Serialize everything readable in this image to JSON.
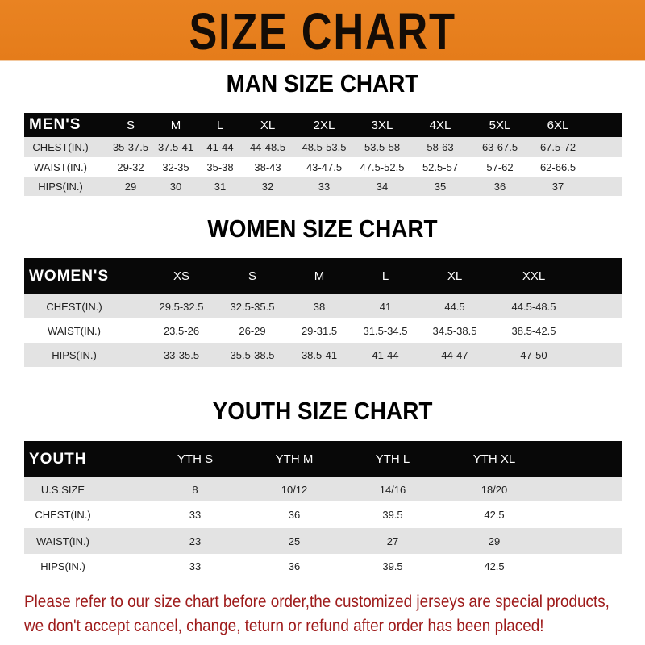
{
  "banner": {
    "title": "SIZE CHART",
    "color": "#e8801e"
  },
  "men": {
    "title": "MAN SIZE CHART",
    "header": [
      "MEN'S",
      "S",
      "M",
      "L",
      "XL",
      "2XL",
      "3XL",
      "4XL",
      "5XL",
      "6XL"
    ],
    "rows": [
      [
        "CHEST(IN.)",
        "35-37.5",
        "37.5-41",
        "41-44",
        "44-48.5",
        "48.5-53.5",
        "53.5-58",
        "58-63",
        "63-67.5",
        "67.5-72"
      ],
      [
        "WAIST(IN.)",
        "29-32",
        "32-35",
        "35-38",
        "38-43",
        "43-47.5",
        "47.5-52.5",
        "52.5-57",
        "57-62",
        "62-66.5"
      ],
      [
        "HIPS(IN.)",
        "29",
        "30",
        "31",
        "32",
        "33",
        "34",
        "35",
        "36",
        "37"
      ]
    ]
  },
  "women": {
    "title": "WOMEN SIZE CHART",
    "header": [
      "WOMEN'S",
      "XS",
      "S",
      "M",
      "L",
      "XL",
      "XXL"
    ],
    "rows": [
      [
        "CHEST(IN.)",
        "29.5-32.5",
        "32.5-35.5",
        "38",
        "41",
        "44.5",
        "44.5-48.5"
      ],
      [
        "WAIST(IN.)",
        "23.5-26",
        "26-29",
        "29-31.5",
        "31.5-34.5",
        "34.5-38.5",
        "38.5-42.5"
      ],
      [
        "HIPS(IN.)",
        "33-35.5",
        "35.5-38.5",
        "38.5-41",
        "41-44",
        "44-47",
        "47-50"
      ]
    ]
  },
  "youth": {
    "title": "YOUTH SIZE CHART",
    "header": [
      "YOUTH",
      "YTH S",
      "YTH M",
      "YTH L",
      "YTH XL"
    ],
    "rows": [
      [
        "U.S.SIZE",
        "8",
        "10/12",
        "14/16",
        "18/20"
      ],
      [
        "CHEST(IN.)",
        "33",
        "36",
        "39.5",
        "42.5"
      ],
      [
        "WAIST(IN.)",
        "23",
        "25",
        "27",
        "29"
      ],
      [
        "HIPS(IN.)",
        "33",
        "36",
        "39.5",
        "42.5"
      ]
    ]
  },
  "note": {
    "line1": "Please refer to our size chart before order,the customized jerseys are special products,",
    "line2": "we don't accept cancel, change, teturn or refund after order has been placed!",
    "color": "#9e1b1b"
  }
}
